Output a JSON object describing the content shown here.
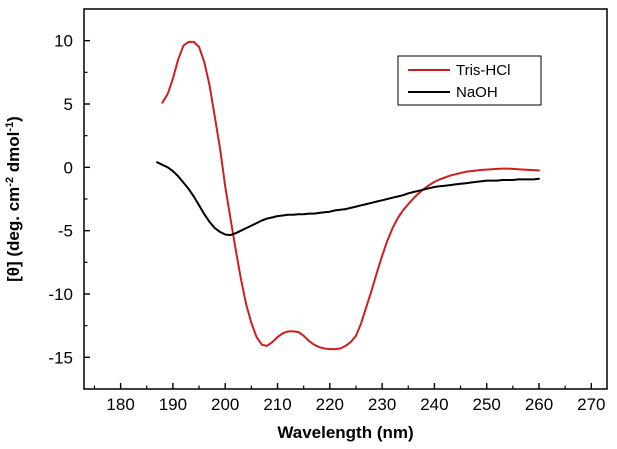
{
  "chart_data": {
    "type": "line",
    "xlabel": "Wavelength (nm)",
    "ylabel_parts": {
      "prefix": "[θ] (deg. cm",
      "exp1": "-2",
      "middle": " dmol",
      "exp2": "-1",
      "suffix": ")"
    },
    "xlim": [
      173,
      273
    ],
    "ylim": [
      -17.5,
      12.5
    ],
    "xticks": [
      180,
      190,
      200,
      210,
      220,
      230,
      240,
      250,
      260,
      270
    ],
    "yticks": [
      -15,
      -10,
      -5,
      0,
      5,
      10
    ],
    "legend_position": "top-right",
    "grid": false,
    "series": [
      {
        "name": "Tris-HCl",
        "color": "#cc1f1f",
        "x": [
          188,
          189,
          190,
          191,
          192,
          193,
          194,
          195,
          196,
          197,
          198,
          199,
          200,
          201,
          202,
          203,
          204,
          205,
          206,
          207,
          208,
          209,
          210,
          211,
          212,
          213,
          214,
          215,
          216,
          217,
          218,
          219,
          220,
          221,
          222,
          223,
          224,
          225,
          226,
          227,
          228,
          229,
          230,
          231,
          232,
          233,
          234,
          235,
          236,
          237,
          238,
          239,
          240,
          241,
          242,
          243,
          244,
          245,
          246,
          247,
          248,
          249,
          250,
          251,
          252,
          253,
          254,
          255,
          256,
          257,
          258,
          259,
          260
        ],
        "y": [
          5.1,
          5.8,
          7.0,
          8.5,
          9.6,
          9.9,
          9.9,
          9.5,
          8.3,
          6.5,
          4.0,
          1.5,
          -1.5,
          -4.0,
          -6.5,
          -8.8,
          -10.8,
          -12.3,
          -13.4,
          -14.0,
          -14.1,
          -13.8,
          -13.4,
          -13.1,
          -12.95,
          -12.95,
          -13.0,
          -13.3,
          -13.7,
          -14.0,
          -14.2,
          -14.3,
          -14.35,
          -14.35,
          -14.3,
          -14.1,
          -13.8,
          -13.3,
          -12.3,
          -11.0,
          -9.7,
          -8.3,
          -7.0,
          -5.8,
          -4.8,
          -4.0,
          -3.4,
          -2.9,
          -2.45,
          -2.05,
          -1.7,
          -1.4,
          -1.15,
          -0.95,
          -0.8,
          -0.65,
          -0.55,
          -0.45,
          -0.35,
          -0.3,
          -0.25,
          -0.2,
          -0.18,
          -0.15,
          -0.12,
          -0.1,
          -0.1,
          -0.12,
          -0.15,
          -0.18,
          -0.2,
          -0.22,
          -0.25
        ]
      },
      {
        "name": "NaOH",
        "color": "#000000",
        "x": [
          187,
          188,
          189,
          190,
          191,
          192,
          193,
          194,
          195,
          196,
          197,
          198,
          199,
          200,
          201,
          202,
          203,
          204,
          205,
          206,
          207,
          208,
          209,
          210,
          211,
          212,
          213,
          214,
          215,
          216,
          217,
          218,
          219,
          220,
          221,
          222,
          223,
          224,
          225,
          226,
          227,
          228,
          229,
          230,
          231,
          232,
          233,
          234,
          235,
          236,
          237,
          238,
          239,
          240,
          241,
          242,
          243,
          244,
          245,
          246,
          247,
          248,
          249,
          250,
          251,
          252,
          253,
          254,
          255,
          256,
          257,
          258,
          259,
          260
        ],
        "y": [
          0.4,
          0.2,
          0.0,
          -0.3,
          -0.7,
          -1.2,
          -1.7,
          -2.3,
          -3.0,
          -3.7,
          -4.3,
          -4.8,
          -5.1,
          -5.3,
          -5.35,
          -5.2,
          -5.0,
          -4.8,
          -4.6,
          -4.4,
          -4.2,
          -4.05,
          -3.95,
          -3.85,
          -3.8,
          -3.75,
          -3.75,
          -3.7,
          -3.7,
          -3.65,
          -3.65,
          -3.6,
          -3.55,
          -3.5,
          -3.4,
          -3.35,
          -3.3,
          -3.2,
          -3.1,
          -3.0,
          -2.9,
          -2.8,
          -2.7,
          -2.6,
          -2.5,
          -2.4,
          -2.3,
          -2.2,
          -2.05,
          -1.95,
          -1.85,
          -1.75,
          -1.65,
          -1.55,
          -1.5,
          -1.45,
          -1.4,
          -1.35,
          -1.3,
          -1.25,
          -1.2,
          -1.15,
          -1.1,
          -1.05,
          -1.05,
          -1.05,
          -1.0,
          -1.0,
          -1.0,
          -0.95,
          -0.95,
          -0.95,
          -0.95,
          -0.9
        ]
      }
    ]
  }
}
